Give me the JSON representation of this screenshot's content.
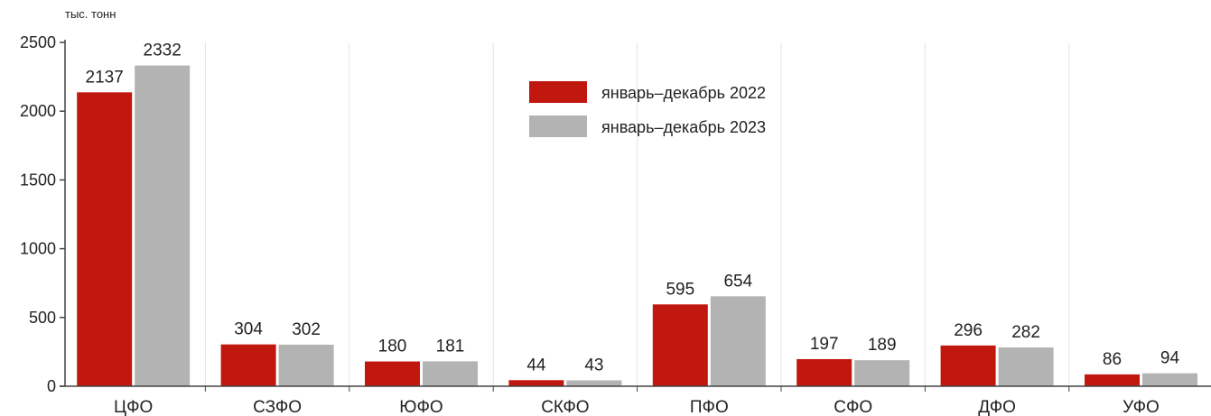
{
  "chart_data": {
    "type": "bar",
    "unit_label": "тыс. тонн",
    "categories": [
      "ЦФО",
      "СЗФО",
      "ЮФО",
      "СКФО",
      "ПФО",
      "СФО",
      "ДФО",
      "УФО"
    ],
    "series": [
      {
        "name": "январь–декабрь 2022",
        "color": "#c0180e",
        "values": [
          2137,
          304,
          180,
          44,
          595,
          197,
          296,
          86
        ]
      },
      {
        "name": "январь–декабрь 2023",
        "color": "#b3b3b3",
        "values": [
          2332,
          302,
          181,
          43,
          654,
          189,
          282,
          94
        ]
      }
    ],
    "ylim": [
      0,
      2500
    ],
    "yticks": [
      0,
      500,
      1000,
      1500,
      2000,
      2500
    ],
    "grid": "vertical",
    "legend_position": "top-center"
  }
}
